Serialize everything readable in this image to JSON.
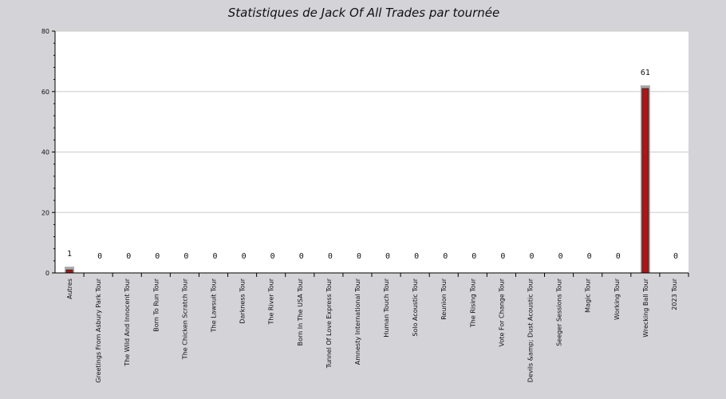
{
  "chart_data": {
    "type": "bar",
    "title": "Statistiques de Jack Of All Trades par tournée",
    "xlabel": "",
    "ylabel": "",
    "ylim": [
      0,
      80
    ],
    "yticks": [
      0,
      20,
      40,
      60,
      80
    ],
    "grid": true,
    "categories": [
      "Autres",
      "Greetings From Asbury Park Tour",
      "The Wild And Innocent Tour",
      "Born To Run Tour",
      "The Chicken Scratch Tour",
      "The Lawsuit Tour",
      "Darkness Tour",
      "The River Tour",
      "Born In The USA Tour",
      "Tunnel Of Love Express Tour",
      "Amnesty International Tour",
      "Human Touch Tour",
      "Solo Acoustic Tour",
      "Reunion Tour",
      "The Rising Tour",
      "Vote For Change Tour",
      "Devils &amp; Dust Acoustic Tour",
      "Seeger Sessions Tour",
      "Magic Tour",
      "Working Tour",
      "Wrecking Ball Tour",
      "2023 Tour"
    ],
    "values": [
      1,
      0,
      0,
      0,
      0,
      0,
      0,
      0,
      0,
      0,
      0,
      0,
      0,
      0,
      0,
      0,
      0,
      0,
      0,
      0,
      61,
      0
    ],
    "colors": {
      "bar": "#b01515",
      "shadow": "#a8a8a8",
      "background": "#d4d3d8",
      "plot": "#ffffff",
      "grid": "#cccccc"
    }
  }
}
